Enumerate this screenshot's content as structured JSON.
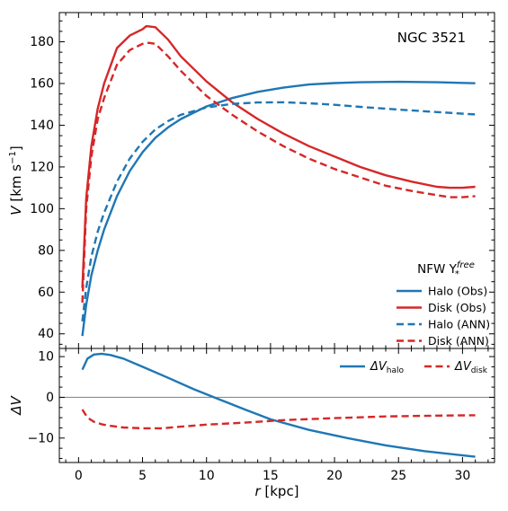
{
  "chart_data": [
    {
      "type": "line",
      "annotation": "NGC 3521",
      "xlim": [
        -1.5,
        32.5
      ],
      "ylim": [
        33,
        194
      ],
      "yticks": [
        40,
        60,
        80,
        100,
        120,
        140,
        160,
        180
      ],
      "ylabel": "V [km s⁻¹]",
      "legend": {
        "placement": "lower-right",
        "title": "NFW Υ*free"
      },
      "series": [
        {
          "name": "Halo (Obs)",
          "color": "#1f77b4",
          "dash": "solid",
          "x": [
            0.3,
            0.6,
            1,
            1.5,
            2,
            3,
            4,
            5,
            6,
            7,
            8,
            10,
            12,
            14,
            16,
            18,
            20,
            22,
            25,
            28,
            31
          ],
          "y": [
            39,
            54,
            68,
            80,
            90,
            106,
            118,
            127,
            134,
            139,
            143,
            149,
            153,
            156,
            158,
            159.5,
            160.2,
            160.6,
            160.8,
            160.6,
            160.1
          ]
        },
        {
          "name": "Disk (Obs)",
          "color": "#d62728",
          "dash": "solid",
          "x": [
            0.3,
            0.6,
            1,
            1.5,
            2,
            3,
            4,
            5,
            5.3,
            6,
            7,
            8,
            10,
            12,
            14,
            16,
            18,
            20,
            22,
            24,
            26,
            28,
            29,
            30,
            31
          ],
          "y": [
            62,
            105,
            130,
            148,
            160,
            177,
            183,
            186,
            187.5,
            187,
            181,
            173,
            161,
            151,
            143,
            136,
            130,
            125,
            120,
            116,
            113,
            110.5,
            110,
            110,
            110.5
          ]
        },
        {
          "name": "Halo (ANN)",
          "color": "#1f77b4",
          "dash": "dashed",
          "x": [
            0.3,
            0.6,
            1,
            1.5,
            2,
            3,
            4,
            5,
            6,
            7,
            8,
            10,
            12,
            14,
            16,
            18,
            20,
            22,
            25,
            28,
            31
          ],
          "y": [
            46,
            62,
            77,
            89,
            98,
            113,
            124,
            132,
            138,
            142,
            145,
            148.5,
            150.2,
            150.9,
            151,
            150.5,
            149.8,
            148.8,
            147.5,
            146.3,
            145.2
          ]
        },
        {
          "name": "Disk (ANN)",
          "color": "#d62728",
          "dash": "dashed",
          "x": [
            0.3,
            0.6,
            1,
            1.5,
            2,
            3,
            4,
            5,
            5.5,
            6,
            7,
            8,
            10,
            12,
            14,
            16,
            18,
            20,
            22,
            24,
            26,
            28,
            29,
            30,
            31
          ],
          "y": [
            55,
            100,
            125,
            143,
            153,
            169,
            176,
            179,
            179.5,
            179,
            173,
            166,
            154,
            145,
            137,
            130,
            124,
            119,
            115,
            111,
            108.5,
            106.5,
            105.5,
            105.5,
            106
          ]
        }
      ]
    },
    {
      "type": "line",
      "xlim": [
        -1.5,
        32.5
      ],
      "ylim": [
        -16,
        12
      ],
      "xticks": [
        0,
        5,
        10,
        15,
        20,
        25,
        30
      ],
      "yticks": [
        -10,
        0,
        10
      ],
      "xlabel": "r [kpc]",
      "ylabel": "ΔV",
      "reference_line": 0,
      "legend": {
        "placement": "top-right"
      },
      "series": [
        {
          "name": "ΔV halo",
          "color": "#1f77b4",
          "dash": "solid",
          "x": [
            0.3,
            0.7,
            1.2,
            1.8,
            2.5,
            3.5,
            5,
            7,
            9,
            11,
            13,
            15,
            18,
            21,
            24,
            27,
            31
          ],
          "y": [
            6.8,
            9.5,
            10.5,
            10.7,
            10.4,
            9.5,
            7.5,
            4.8,
            2,
            -0.5,
            -3,
            -5.4,
            -8,
            -10,
            -11.8,
            -13.2,
            -14.6
          ]
        },
        {
          "name": "ΔV disk",
          "color": "#d62728",
          "dash": "dashed",
          "x": [
            0.3,
            0.7,
            1.2,
            1.8,
            2.5,
            3.5,
            5,
            6.5,
            8,
            10,
            13,
            16,
            20,
            24,
            28,
            31
          ],
          "y": [
            -3,
            -5,
            -6,
            -6.6,
            -7,
            -7.4,
            -7.6,
            -7.6,
            -7.2,
            -6.7,
            -6.2,
            -5.6,
            -5.1,
            -4.7,
            -4.5,
            -4.4
          ]
        }
      ]
    }
  ]
}
